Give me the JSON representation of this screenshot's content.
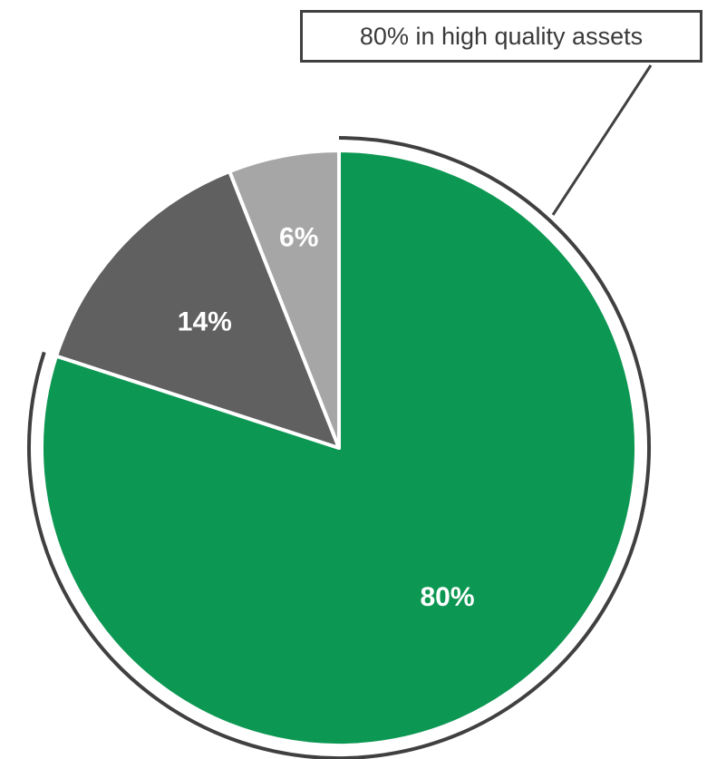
{
  "chart_data": {
    "type": "pie",
    "categories": [
      "High quality assets",
      "Other (dark grey)",
      "Other (light grey)"
    ],
    "values": [
      80,
      14,
      6
    ],
    "labels": [
      "80%",
      "14%",
      "6%"
    ],
    "colors": [
      "#0c9752",
      "#606060",
      "#a6a6a6"
    ],
    "start_angle": "12 o'clock",
    "direction": "clockwise",
    "highlighted_slice": 0,
    "title": "",
    "annotation": "80% in high quality assets",
    "legend": "none"
  }
}
